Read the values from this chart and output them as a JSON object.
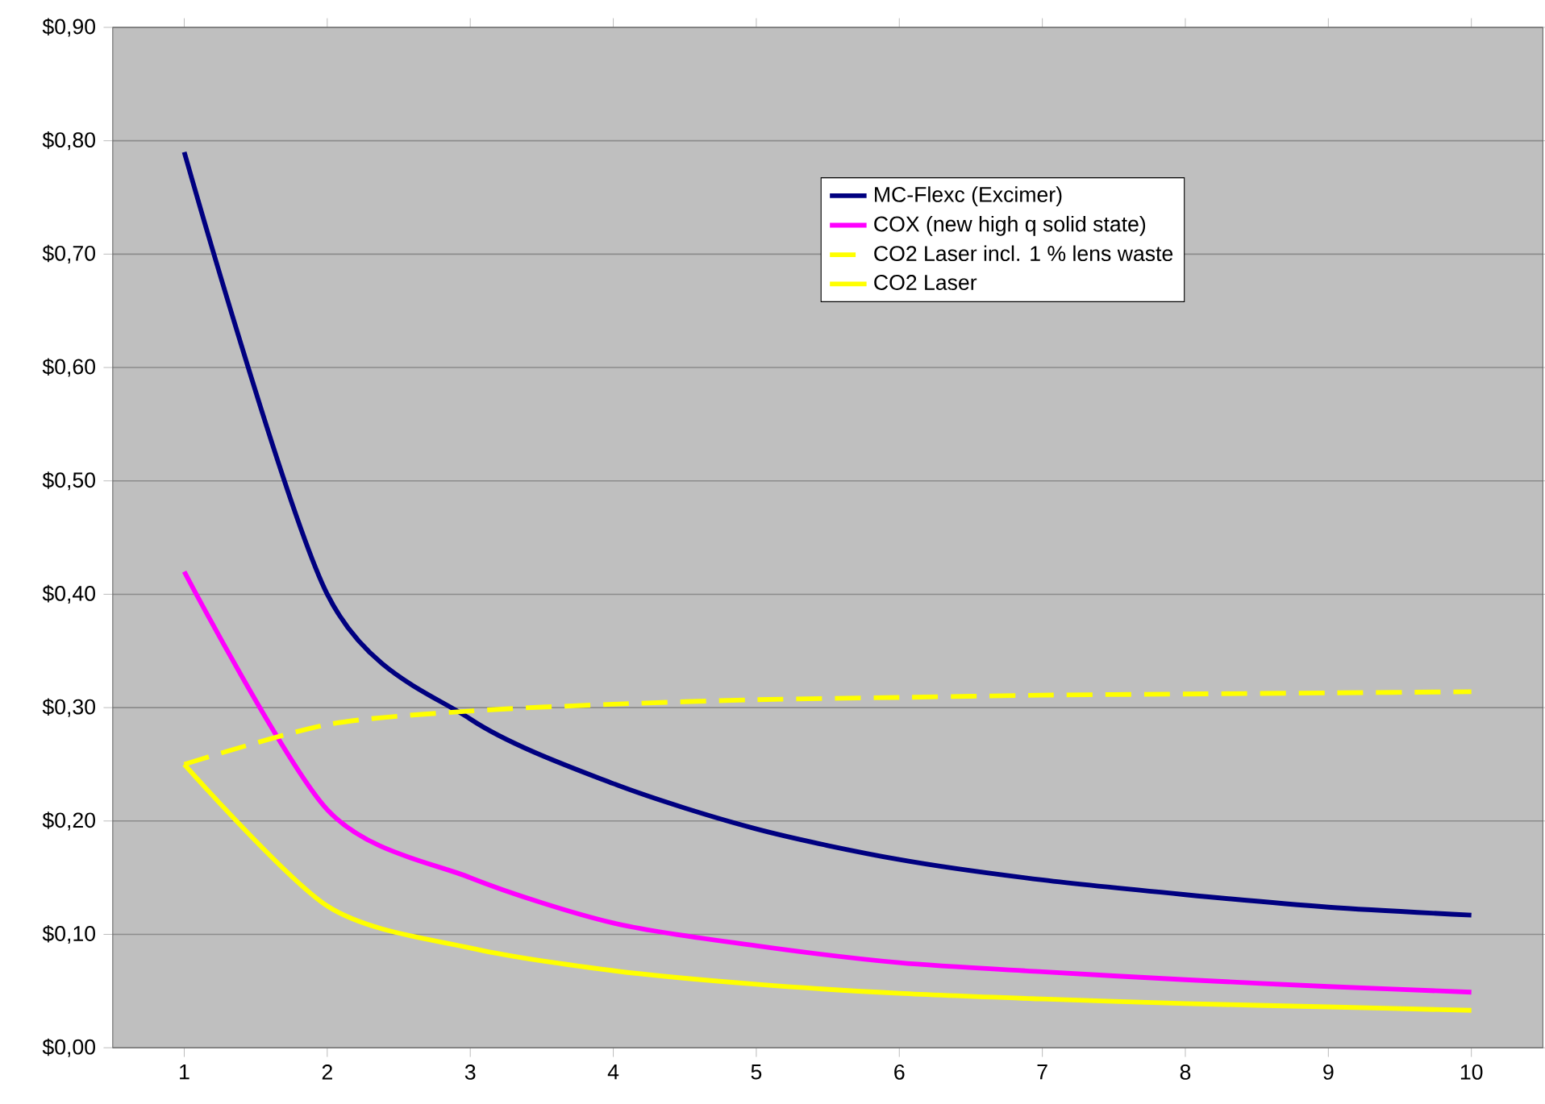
{
  "chart_data": {
    "type": "line",
    "categories": [
      "1",
      "2",
      "3",
      "4",
      "5",
      "6",
      "7",
      "8",
      "9",
      "10"
    ],
    "series": [
      {
        "name": "MC-Flexc (Excimer)",
        "color": "#000080",
        "values": [
          0.79,
          0.4,
          0.29,
          0.233,
          0.193,
          0.166,
          0.148,
          0.135,
          0.124,
          0.117
        ]
      },
      {
        "name": "COX (new high q solid state)",
        "color": "#ff00ff",
        "values": [
          0.42,
          0.21,
          0.15,
          0.11,
          0.09,
          0.075,
          0.067,
          0.06,
          0.054,
          0.049
        ]
      },
      {
        "name": "CO2 Laser incl. 1 % lens waste",
        "color": "#ffff00",
        "line_style": "dashed",
        "values": [
          0.25,
          0.285,
          0.297,
          0.303,
          0.307,
          0.309,
          0.311,
          0.312,
          0.313,
          0.314
        ]
      },
      {
        "name": "CO2 Laser",
        "color": "#ffff00",
        "values": [
          0.25,
          0.125,
          0.088,
          0.068,
          0.056,
          0.048,
          0.043,
          0.039,
          0.036,
          0.033
        ]
      }
    ],
    "ylim": [
      0,
      0.9
    ],
    "yticks": [
      {
        "value": 0,
        "label": "$0,00"
      },
      {
        "value": 0.1,
        "label": "$0,10"
      },
      {
        "value": 0.2,
        "label": "$0,20"
      },
      {
        "value": 0.3,
        "label": "$0,30"
      },
      {
        "value": 0.4,
        "label": "$0,40"
      },
      {
        "value": 0.5,
        "label": "$0,50"
      },
      {
        "value": 0.6,
        "label": "$0,60"
      },
      {
        "value": 0.7,
        "label": "$0,70"
      },
      {
        "value": 0.8,
        "label": "$0,80"
      },
      {
        "value": 0.9,
        "label": "$0,90"
      }
    ],
    "grid": "y",
    "legend": "top right"
  }
}
